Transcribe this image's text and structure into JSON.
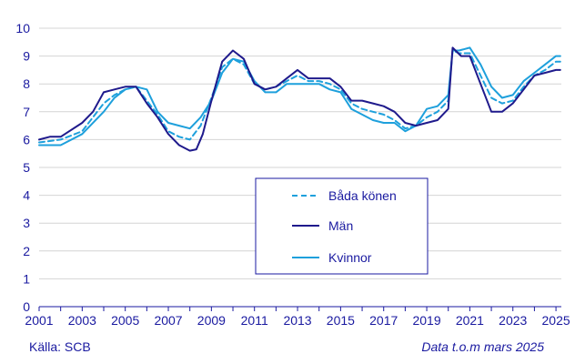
{
  "chart_data": {
    "type": "line",
    "ylim": [
      0,
      10
    ],
    "xlim": [
      2001,
      2025.25
    ],
    "y_ticks": [
      "0",
      "1",
      "2",
      "3",
      "4",
      "5",
      "6",
      "7",
      "8",
      "9",
      "10"
    ],
    "x_ticks": [
      "2001",
      "2003",
      "2005",
      "2007",
      "2009",
      "2011",
      "2013",
      "2015",
      "2017",
      "2019",
      "2021",
      "2023",
      "2025"
    ],
    "grid": "horizontal",
    "legend_position": "center-right",
    "series": [
      {
        "name": "Båda könen",
        "color": "#1ea0dc",
        "style": "dashed",
        "points": [
          [
            2001,
            5.9
          ],
          [
            2002,
            6.0
          ],
          [
            2003,
            6.3
          ],
          [
            2004,
            7.3
          ],
          [
            2004.5,
            7.6
          ],
          [
            2005,
            7.8
          ],
          [
            2005.5,
            7.9
          ],
          [
            2006,
            7.4
          ],
          [
            2006.5,
            6.9
          ],
          [
            2007,
            6.3
          ],
          [
            2007.5,
            6.1
          ],
          [
            2008,
            6.0
          ],
          [
            2008.5,
            6.5
          ],
          [
            2009,
            7.5
          ],
          [
            2009.5,
            8.6
          ],
          [
            2010,
            8.9
          ],
          [
            2010.5,
            8.7
          ],
          [
            2011,
            8.0
          ],
          [
            2011.5,
            7.8
          ],
          [
            2012,
            7.9
          ],
          [
            2012.5,
            8.1
          ],
          [
            2013,
            8.3
          ],
          [
            2013.5,
            8.1
          ],
          [
            2014,
            8.1
          ],
          [
            2014.5,
            8.0
          ],
          [
            2015,
            7.8
          ],
          [
            2015.5,
            7.3
          ],
          [
            2016,
            7.1
          ],
          [
            2016.5,
            7.0
          ],
          [
            2017,
            6.9
          ],
          [
            2017.5,
            6.7
          ],
          [
            2018,
            6.4
          ],
          [
            2018.5,
            6.5
          ],
          [
            2019,
            6.8
          ],
          [
            2019.5,
            7.0
          ],
          [
            2020,
            7.4
          ],
          [
            2020.2,
            9.2
          ],
          [
            2020.5,
            9.1
          ],
          [
            2021,
            9.1
          ],
          [
            2021.5,
            8.3
          ],
          [
            2022,
            7.5
          ],
          [
            2022.5,
            7.3
          ],
          [
            2023,
            7.4
          ],
          [
            2023.5,
            7.9
          ],
          [
            2024,
            8.3
          ],
          [
            2024.5,
            8.5
          ],
          [
            2025,
            8.8
          ],
          [
            2025.2,
            8.8
          ]
        ]
      },
      {
        "name": "Män",
        "color": "#1f1a8c",
        "style": "solid",
        "points": [
          [
            2001,
            6.0
          ],
          [
            2001.5,
            6.1
          ],
          [
            2002,
            6.1
          ],
          [
            2003,
            6.6
          ],
          [
            2003.5,
            7.0
          ],
          [
            2004,
            7.7
          ],
          [
            2004.5,
            7.8
          ],
          [
            2005,
            7.9
          ],
          [
            2005.5,
            7.9
          ],
          [
            2006,
            7.3
          ],
          [
            2006.5,
            6.8
          ],
          [
            2007,
            6.2
          ],
          [
            2007.5,
            5.8
          ],
          [
            2008,
            5.6
          ],
          [
            2008.3,
            5.65
          ],
          [
            2008.6,
            6.2
          ],
          [
            2009,
            7.4
          ],
          [
            2009.5,
            8.8
          ],
          [
            2010,
            9.2
          ],
          [
            2010.5,
            8.9
          ],
          [
            2011,
            8.0
          ],
          [
            2011.5,
            7.8
          ],
          [
            2012,
            7.9
          ],
          [
            2012.5,
            8.2
          ],
          [
            2013,
            8.5
          ],
          [
            2013.5,
            8.2
          ],
          [
            2014,
            8.2
          ],
          [
            2014.5,
            8.2
          ],
          [
            2015,
            7.9
          ],
          [
            2015.5,
            7.4
          ],
          [
            2016,
            7.4
          ],
          [
            2016.5,
            7.3
          ],
          [
            2017,
            7.2
          ],
          [
            2017.5,
            7.0
          ],
          [
            2018,
            6.6
          ],
          [
            2018.5,
            6.5
          ],
          [
            2019,
            6.6
          ],
          [
            2019.5,
            6.7
          ],
          [
            2020,
            7.1
          ],
          [
            2020.2,
            9.3
          ],
          [
            2020.6,
            9.0
          ],
          [
            2021,
            9.0
          ],
          [
            2021.5,
            8.0
          ],
          [
            2022,
            7.0
          ],
          [
            2022.5,
            7.0
          ],
          [
            2023,
            7.3
          ],
          [
            2023.5,
            7.8
          ],
          [
            2024,
            8.3
          ],
          [
            2024.5,
            8.4
          ],
          [
            2025,
            8.5
          ],
          [
            2025.2,
            8.5
          ]
        ]
      },
      {
        "name": "Kvinnor",
        "color": "#1ea0dc",
        "style": "solid",
        "points": [
          [
            2001,
            5.8
          ],
          [
            2002,
            5.8
          ],
          [
            2003,
            6.2
          ],
          [
            2004,
            7.0
          ],
          [
            2004.5,
            7.5
          ],
          [
            2005,
            7.8
          ],
          [
            2005.5,
            7.9
          ],
          [
            2006,
            7.8
          ],
          [
            2006.5,
            7.0
          ],
          [
            2007,
            6.6
          ],
          [
            2007.5,
            6.5
          ],
          [
            2008,
            6.4
          ],
          [
            2008.5,
            6.8
          ],
          [
            2009,
            7.4
          ],
          [
            2009.5,
            8.4
          ],
          [
            2010,
            8.9
          ],
          [
            2010.5,
            8.8
          ],
          [
            2011,
            8.1
          ],
          [
            2011.5,
            7.7
          ],
          [
            2012,
            7.7
          ],
          [
            2012.5,
            8.0
          ],
          [
            2013,
            8.0
          ],
          [
            2013.5,
            8.0
          ],
          [
            2014,
            8.0
          ],
          [
            2014.5,
            7.8
          ],
          [
            2015,
            7.7
          ],
          [
            2015.5,
            7.1
          ],
          [
            2016,
            6.9
          ],
          [
            2016.5,
            6.7
          ],
          [
            2017,
            6.6
          ],
          [
            2017.5,
            6.6
          ],
          [
            2018,
            6.3
          ],
          [
            2018.5,
            6.5
          ],
          [
            2019,
            7.1
          ],
          [
            2019.5,
            7.2
          ],
          [
            2020,
            7.6
          ],
          [
            2020.2,
            9.2
          ],
          [
            2020.5,
            9.2
          ],
          [
            2021,
            9.3
          ],
          [
            2021.5,
            8.7
          ],
          [
            2022,
            7.9
          ],
          [
            2022.5,
            7.5
          ],
          [
            2023,
            7.6
          ],
          [
            2023.5,
            8.1
          ],
          [
            2024,
            8.4
          ],
          [
            2024.5,
            8.7
          ],
          [
            2025,
            9.0
          ],
          [
            2025.2,
            9.0
          ]
        ]
      }
    ]
  },
  "footer": {
    "source": "Källa: SCB",
    "note": "Data t.o.m mars 2025"
  }
}
